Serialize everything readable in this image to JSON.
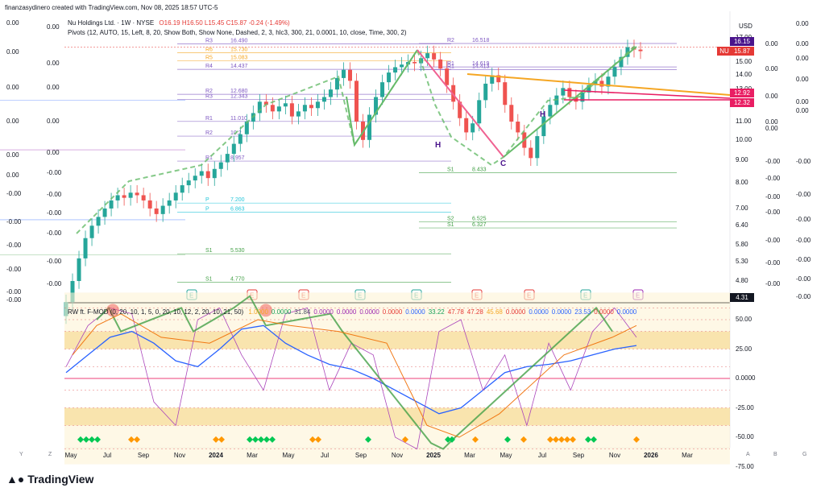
{
  "header": {
    "credit": "finanzasydinero created with TradingView.com, Nov 08, 2025 18:57 UTC-5"
  },
  "legend": {
    "symbol": "Nu Holdings Ltd. · 1W · NYSE",
    "ohlc": "O16.19 H16.50 L15.45 C15.87 -0.24 (-1.49%)",
    "pivots": "Pivots (12, AUTO, 15, Left, 8, 20, Show Both, Show None, Dashed, 2, 3, hlc3, 300, 21, 0.0001, 10, close, Time, 300, 2)",
    "indicator_name": "RW ft. F-MOD (0, 20, 10, 1, 5, 0, 20, 10, 12, 2, 20, 10, 21, 50)",
    "indicator_values": [
      "1.0000",
      "0.0000",
      "31.84",
      "0.0000",
      "0.0000",
      "0.0000",
      "0.0000",
      "0.0000",
      "33.22",
      "47.78",
      "47.28",
      "45.68",
      "0.0000",
      "0.0000",
      "0.0000",
      "23.53",
      "0.0000",
      "0.0000"
    ],
    "indicator_colors": [
      "#f5a623",
      "#1aa05a",
      "#4c5566",
      "#9c27b0",
      "#9c27b0",
      "#9c27b0",
      "#e53935",
      "#2962ff",
      "#1aa05a",
      "#e53935",
      "#e53935",
      "#f5a623",
      "#e53935",
      "#2962ff",
      "#2962ff",
      "#2962ff",
      "#e53935",
      "#2962ff"
    ]
  },
  "currency": "USD",
  "price_axis": [
    "17.00",
    "15.00",
    "14.00",
    "13.00",
    "12.00",
    "11.00",
    "10.00",
    "9.00",
    "8.00",
    "7.00",
    "6.40",
    "5.80",
    "5.30",
    "4.80"
  ],
  "price_tags": [
    {
      "label": "16.15",
      "color": "#4a148c"
    },
    {
      "label": "NU",
      "color": "#e53935"
    },
    {
      "label": "15.87",
      "color": "#e53935"
    },
    {
      "label": "12.92",
      "color": "#e91e63"
    },
    {
      "label": "12.32",
      "color": "#e91e63"
    },
    {
      "label": "4.31",
      "color": "#131722"
    }
  ],
  "left_column_1": [
    "0.00",
    "0.00",
    "0.00",
    "0.00",
    "0.00",
    "0.00",
    "-0.00",
    "-0.00",
    "-0.00",
    "-0.00",
    "-0.00",
    "-0.00"
  ],
  "left_column_2": [
    "0.00",
    "0.00",
    "0.00",
    "0.00",
    "0.00",
    "-0.00",
    "-0.00",
    "-0.00",
    "-0.00",
    "-0.00",
    "-0.00"
  ],
  "right_column_1": [
    "0.00",
    "0.00",
    "0.00",
    "0.00",
    "0.00",
    "-0.00",
    "-0.00",
    "-0.00",
    "-0.00",
    "-0.00",
    "-0.00",
    "-0.00"
  ],
  "right_column_2": [
    "0.00",
    "0.00",
    "0.00",
    "0.00",
    "0.00",
    "0.00",
    "-0.00",
    "-0.00",
    "-0.00",
    "-0.00",
    "-0.00",
    "-0.00",
    "-0.00"
  ],
  "pivot_labels": [
    {
      "name": "R3",
      "value": "16.490"
    },
    {
      "name": "R6",
      "value": "15.730"
    },
    {
      "name": "R5",
      "value": "15.083"
    },
    {
      "name": "R4",
      "value": "14.437"
    },
    {
      "name": "R2",
      "value": "12.680"
    },
    {
      "name": "R3",
      "value": "12.343"
    },
    {
      "name": "R1",
      "value": "11.010"
    },
    {
      "name": "R2",
      "value": "10.2"
    },
    {
      "name": "R1",
      "value": "8.957"
    },
    {
      "name": "P",
      "value": "7.200"
    },
    {
      "name": "P",
      "value": "6.863"
    },
    {
      "name": "S1",
      "value": "5.530"
    },
    {
      "name": "S1",
      "value": "4.770"
    },
    {
      "name": "R2",
      "value": "16.518"
    },
    {
      "name": "R1",
      "value": "14.619"
    },
    {
      "name": "R1",
      "value": "14.413"
    },
    {
      "name": "S1",
      "value": "8.433"
    },
    {
      "name": "S2",
      "value": "6.525"
    },
    {
      "name": "S1",
      "value": "6.327"
    }
  ],
  "pattern_labels": [
    "H",
    "C",
    "H"
  ],
  "earnings_marker": "E",
  "osc_axis": [
    "50.00",
    "25.00",
    "0.0000",
    "-25.00",
    "-50.00",
    "-75.00"
  ],
  "time_axis": [
    "May",
    "Jul",
    "Sep",
    "Nov",
    "2024",
    "Mar",
    "May",
    "Jul",
    "Sep",
    "Nov",
    "2025",
    "Mar",
    "May",
    "Jul",
    "Sep",
    "Nov",
    "2026",
    "Mar"
  ],
  "bottom_letters": [
    "Y",
    "Z",
    "A",
    "B",
    "G"
  ],
  "footer": {
    "brand": "TradingView"
  },
  "colors": {
    "up": "#26a69a",
    "down": "#ef5350",
    "pivot": "#e91e63",
    "trend": "#66bb6a",
    "wedge": "#f5a623",
    "osc_blue": "#2962ff",
    "zone": "#f7d98c"
  }
}
